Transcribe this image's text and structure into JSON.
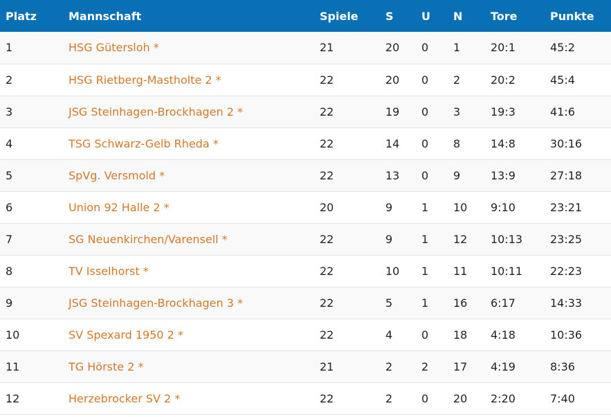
{
  "colors": {
    "header_bg": "#0a70b5",
    "header_text": "#ffffff",
    "team_link": "#cf7a2b",
    "row_alt": "#f9f9f9"
  },
  "table": {
    "headers": {
      "platz": "Platz",
      "mannschaft": "Mannschaft",
      "spiele": "Spiele",
      "s": "S",
      "u": "U",
      "n": "N",
      "tore": "Tore",
      "punkte": "Punkte"
    },
    "rows": [
      {
        "platz": "1",
        "team": "HSG Gütersloh *",
        "spiele": "21",
        "s": "20",
        "u": "0",
        "n": "1",
        "tore": "20:1",
        "punkte": "45:2"
      },
      {
        "platz": "2",
        "team": "HSG Rietberg-Mastholte 2 *",
        "spiele": "22",
        "s": "20",
        "u": "0",
        "n": "2",
        "tore": "20:2",
        "punkte": "45:4"
      },
      {
        "platz": "3",
        "team": "JSG Steinhagen-Brockhagen 2 *",
        "spiele": "22",
        "s": "19",
        "u": "0",
        "n": "3",
        "tore": "19:3",
        "punkte": "41:6"
      },
      {
        "platz": "4",
        "team": "TSG Schwarz-Gelb Rheda *",
        "spiele": "22",
        "s": "14",
        "u": "0",
        "n": "8",
        "tore": "14:8",
        "punkte": "30:16"
      },
      {
        "platz": "5",
        "team": "SpVg. Versmold *",
        "spiele": "22",
        "s": "13",
        "u": "0",
        "n": "9",
        "tore": "13:9",
        "punkte": "27:18"
      },
      {
        "platz": "6",
        "team": "Union 92 Halle 2 *",
        "spiele": "20",
        "s": "9",
        "u": "1",
        "n": "10",
        "tore": "9:10",
        "punkte": "23:21"
      },
      {
        "platz": "7",
        "team": "SG Neuenkirchen/Varensell *",
        "spiele": "22",
        "s": "9",
        "u": "1",
        "n": "12",
        "tore": "10:13",
        "punkte": "23:25"
      },
      {
        "platz": "8",
        "team": "TV Isselhorst *",
        "spiele": "22",
        "s": "10",
        "u": "1",
        "n": "11",
        "tore": "10:11",
        "punkte": "22:23"
      },
      {
        "platz": "9",
        "team": "JSG Steinhagen-Brockhagen 3 *",
        "spiele": "22",
        "s": "5",
        "u": "1",
        "n": "16",
        "tore": "6:17",
        "punkte": "14:33"
      },
      {
        "platz": "10",
        "team": "SV Spexard 1950 2 *",
        "spiele": "22",
        "s": "4",
        "u": "0",
        "n": "18",
        "tore": "4:18",
        "punkte": "10:36"
      },
      {
        "platz": "11",
        "team": "TG Hörste 2 *",
        "spiele": "21",
        "s": "2",
        "u": "2",
        "n": "17",
        "tore": "4:19",
        "punkte": "8:36"
      },
      {
        "platz": "12",
        "team": "Herzebrocker SV 2 *",
        "spiele": "22",
        "s": "2",
        "u": "0",
        "n": "20",
        "tore": "2:20",
        "punkte": "7:40"
      }
    ]
  }
}
